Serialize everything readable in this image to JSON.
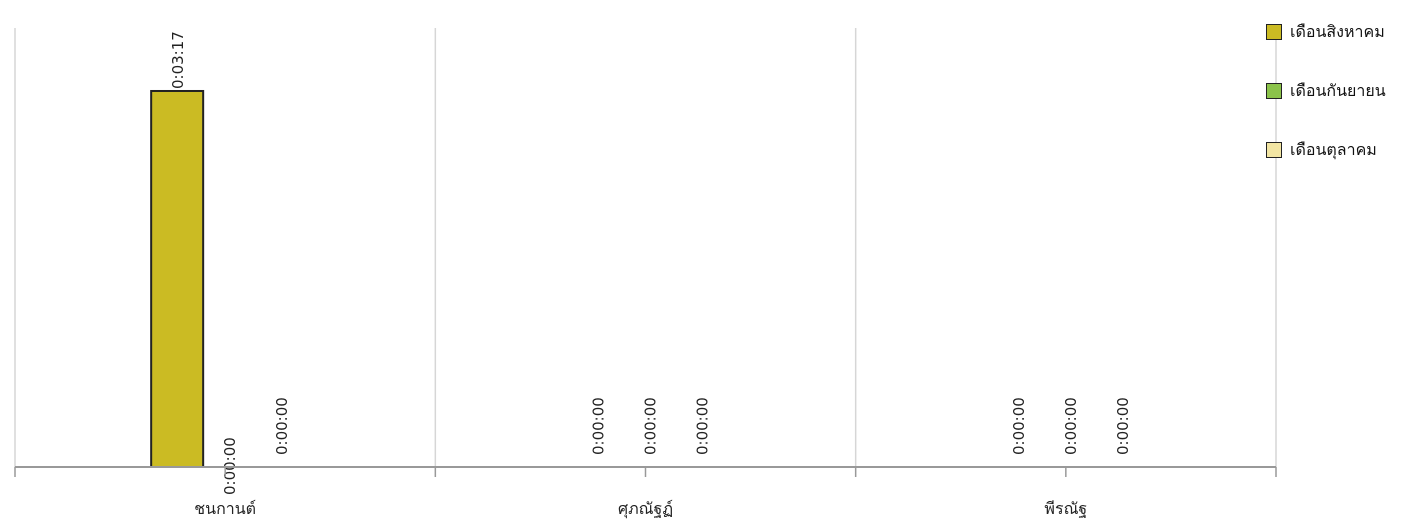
{
  "chart_data": {
    "type": "bar",
    "title": "",
    "xlabel": "",
    "ylabel": "",
    "categories": [
      "ชนกานต์",
      "ศุภณัฐฏ์",
      "พีรณัฐ"
    ],
    "series": [
      {
        "name": "เดือนสิงหาคม",
        "color": "#CBBB23",
        "values": [
          197,
          0,
          0
        ],
        "labels": [
          "0:03:17",
          "0:00:00",
          "0:00:00"
        ]
      },
      {
        "name": "เดือนกันยายน",
        "color": "#8BC34A",
        "values": [
          0,
          0,
          0
        ],
        "labels": [
          "0:00:00",
          "0:00:00",
          "0:00:00"
        ]
      },
      {
        "name": "เดือนตุลาคม",
        "color": "#F2E5A3",
        "values": [
          0,
          0,
          0
        ],
        "labels": [
          "0:00:00",
          "0:00:00",
          "0:00:00"
        ]
      }
    ],
    "value_unit": "seconds",
    "ylim": [
      0,
      230
    ],
    "grid": true,
    "legend_position": "top-right"
  }
}
